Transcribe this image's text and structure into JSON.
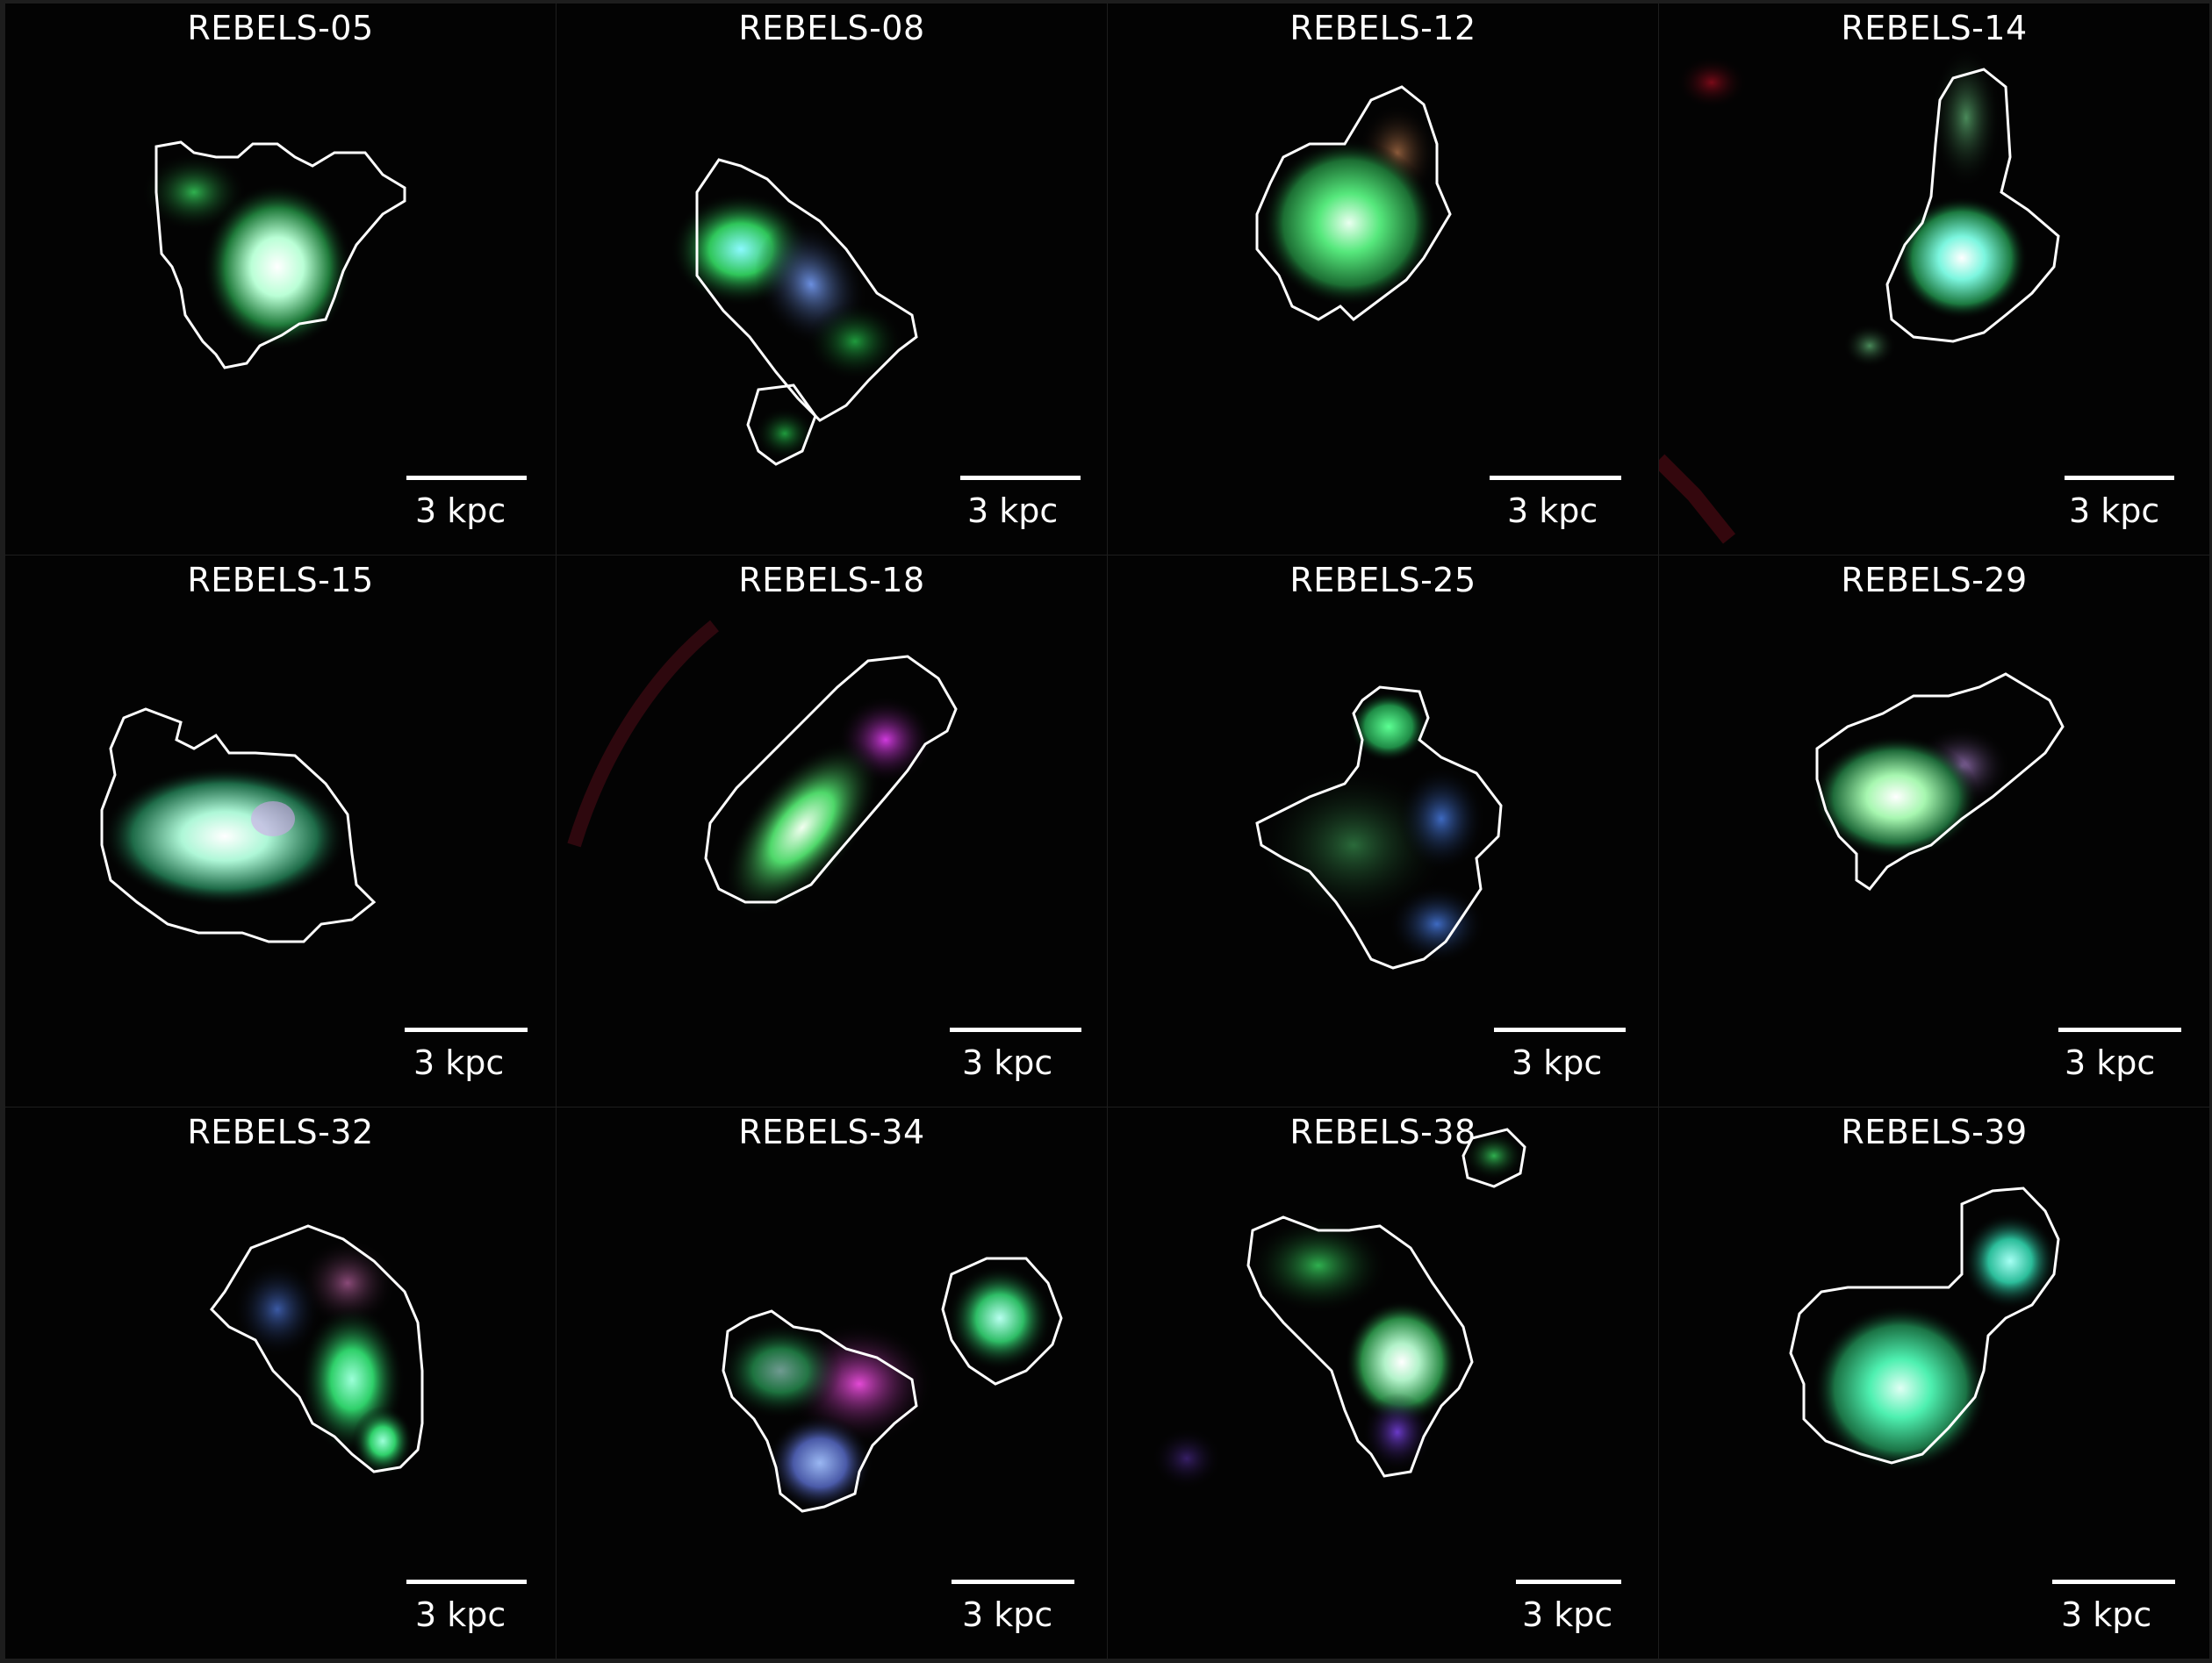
{
  "figure": {
    "panels": [
      {
        "id": "REBELS-05",
        "label": "REBELS-05",
        "scale_label": "3 kpc"
      },
      {
        "id": "REBELS-08",
        "label": "REBELS-08",
        "scale_label": "3 kpc"
      },
      {
        "id": "REBELS-12",
        "label": "REBELS-12",
        "scale_label": "3 kpc"
      },
      {
        "id": "REBELS-14",
        "label": "REBELS-14",
        "scale_label": "3 kpc"
      },
      {
        "id": "REBELS-15",
        "label": "REBELS-15",
        "scale_label": "3 kpc"
      },
      {
        "id": "REBELS-18",
        "label": "REBELS-18",
        "scale_label": "3 kpc"
      },
      {
        "id": "REBELS-25",
        "label": "REBELS-25",
        "scale_label": "3 kpc"
      },
      {
        "id": "REBELS-29",
        "label": "REBELS-29",
        "scale_label": "3 kpc"
      },
      {
        "id": "REBELS-32",
        "label": "REBELS-32",
        "scale_label": "3 kpc"
      },
      {
        "id": "REBELS-34",
        "label": "REBELS-34",
        "scale_label": "3 kpc"
      },
      {
        "id": "REBELS-38",
        "label": "REBELS-38",
        "scale_label": "3 kpc"
      },
      {
        "id": "REBELS-39",
        "label": "REBELS-39",
        "scale_label": "3 kpc"
      }
    ]
  },
  "colors": {
    "background": "#030303",
    "contour": "#ffffff",
    "text": "#ffffff"
  }
}
